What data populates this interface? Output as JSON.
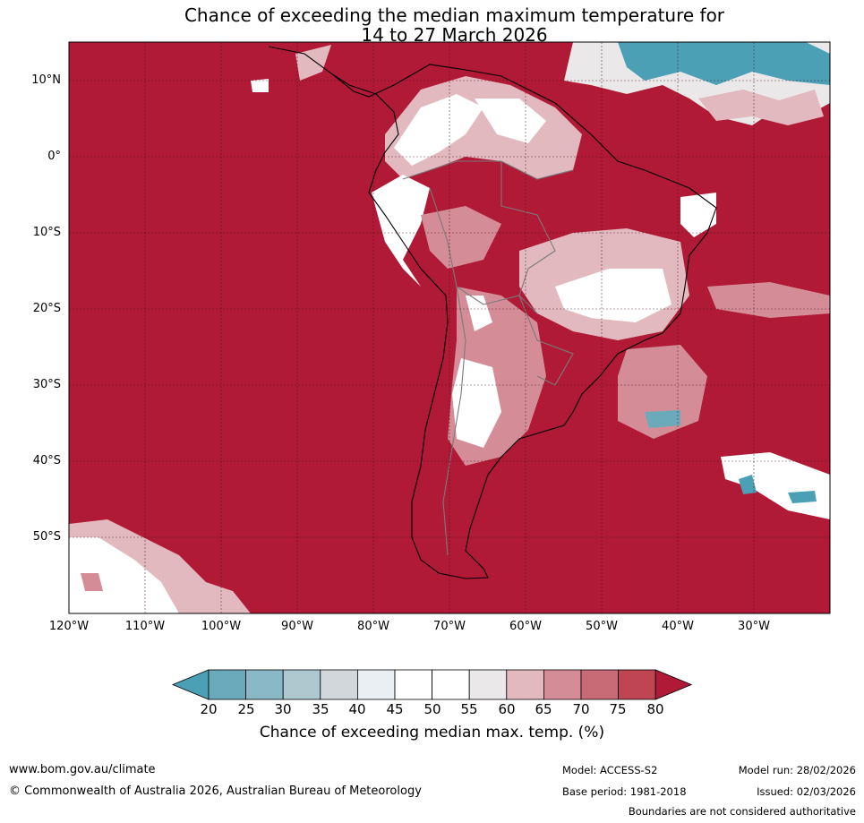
{
  "title": {
    "line1": "Chance of exceeding the median maximum temperature for",
    "line2": "14 to 27 March 2026"
  },
  "map": {
    "region": "South America",
    "lat_labels": [
      "10°N",
      "0°",
      "10°S",
      "20°S",
      "30°S",
      "40°S",
      "50°S"
    ],
    "lon_labels": [
      "120°W",
      "110°W",
      "100°W",
      "90°W",
      "80°W",
      "70°W",
      "60°W",
      "50°W",
      "40°W",
      "30°W"
    ],
    "dominant_color": "#b01a36",
    "gridlines": true
  },
  "colorbar": {
    "ticks": [
      "20",
      "25",
      "30",
      "35",
      "40",
      "45",
      "50",
      "55",
      "60",
      "65",
      "70",
      "75",
      "80"
    ],
    "colors": [
      "#4ba0b5",
      "#6aaabb",
      "#8ab8c6",
      "#aec8cf",
      "#d2d7db",
      "#e9eff2",
      "#ffffff",
      "#ffffff",
      "#ebe8e9",
      "#e2b9bf",
      "#d48d97",
      "#c86b77",
      "#c04552",
      "#b01a36"
    ],
    "label": "Chance of exceeding median max. temp. (%)"
  },
  "footer": {
    "url": "www.bom.gov.au/climate",
    "copyright": "© Commonwealth of Australia 2026, Australian Bureau of Meteorology",
    "model": "Model: ACCESS-S2",
    "base_period": "Base period: 1981-2018",
    "model_run": "Model run: 28/02/2026",
    "issued": "Issued: 02/03/2026",
    "disclaimer": "Boundaries are not considered authoritative"
  }
}
